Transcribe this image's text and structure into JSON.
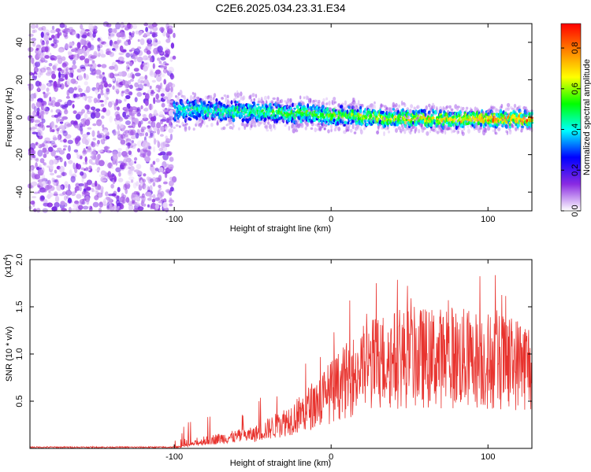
{
  "title": "C2E6.2025.034.23.31.E34",
  "chart_data": [
    {
      "type": "heatmap",
      "xlabel": "Height of straight line (km)",
      "ylabel": "Frequency (Hz)",
      "xlim": [
        -192,
        128
      ],
      "ylim": [
        -50,
        50
      ],
      "xticks": [
        -100,
        0,
        100
      ],
      "yticks": [
        -40,
        -20,
        0,
        20,
        40
      ],
      "colorbar": {
        "label": "Normalized spectral amplitude",
        "range": [
          0,
          0.92
        ],
        "ticks": [
          0,
          0.2,
          0.4,
          0.6,
          0.8
        ],
        "tick_labels": [
          "0.0",
          "0.2",
          "0.4",
          "0.6",
          "0.8"
        ],
        "colors": [
          "#ffffff",
          "#8a2be2",
          "#0000ff",
          "#00ffff",
          "#00ff00",
          "#ffff00",
          "#ff8000",
          "#ff0000"
        ]
      },
      "noise_region_x": [
        -192,
        -100
      ],
      "band_center": [
        {
          "x": -100,
          "y": 4
        },
        {
          "x": -50,
          "y": 3
        },
        {
          "x": 0,
          "y": 1
        },
        {
          "x": 50,
          "y": -1
        },
        {
          "x": 128,
          "y": -1
        }
      ],
      "band_halfwidth": [
        {
          "x": -100,
          "y": 6
        },
        {
          "x": 0,
          "y": 5
        },
        {
          "x": 128,
          "y": 4
        }
      ]
    },
    {
      "type": "line",
      "xlabel": "Height of straight line (km)",
      "ylabel": "SNR (10 * v/v)",
      "y_multiplier": "(x10",
      "y_multiplier_exp": "4",
      "y_multiplier_close": ")",
      "xlim": [
        -192,
        128
      ],
      "ylim": [
        0,
        2.0
      ],
      "xticks": [
        -100,
        0,
        100
      ],
      "yticks": [
        0.5,
        1.0,
        1.5,
        2.0
      ],
      "ytick_labels": [
        "0.5",
        "1.0",
        "1.5",
        "2.0"
      ],
      "color": "#e8332e",
      "envelope": [
        {
          "x": -192,
          "y": 0.01
        },
        {
          "x": -100,
          "y": 0.01
        },
        {
          "x": -90,
          "y": 0.05
        },
        {
          "x": -75,
          "y": 0.12
        },
        {
          "x": -50,
          "y": 0.18
        },
        {
          "x": -35,
          "y": 0.3
        },
        {
          "x": -20,
          "y": 0.45
        },
        {
          "x": -10,
          "y": 0.6
        },
        {
          "x": 0,
          "y": 0.75
        },
        {
          "x": 10,
          "y": 0.9
        },
        {
          "x": 20,
          "y": 1.05
        },
        {
          "x": 30,
          "y": 1.15
        },
        {
          "x": 50,
          "y": 1.2
        },
        {
          "x": 80,
          "y": 1.2
        },
        {
          "x": 110,
          "y": 1.15
        },
        {
          "x": 128,
          "y": 1.1
        }
      ]
    }
  ]
}
